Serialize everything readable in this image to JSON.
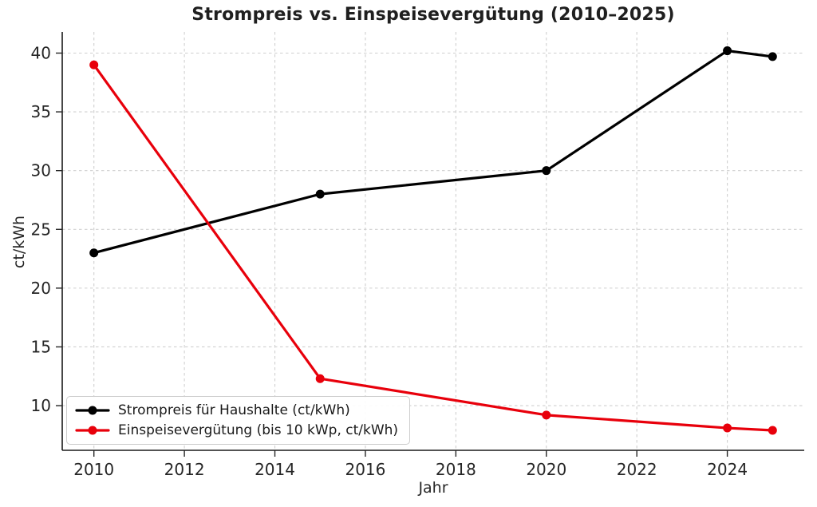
{
  "chart_data": {
    "type": "line",
    "title": "Strompreis vs. Einspeisevergütung (2010–2025)",
    "xlabel": "Jahr",
    "ylabel": "ct/kWh",
    "x": [
      2010,
      2015,
      2020,
      2024,
      2025
    ],
    "series": [
      {
        "name": "Strompreis für Haushalte (ct/kWh)",
        "color": "#000000",
        "values": [
          23.0,
          28.0,
          30.0,
          40.2,
          39.7
        ]
      },
      {
        "name": "Einspeisevergütung (bis 10 kWp, ct/kWh)",
        "color": "#e8000b",
        "values": [
          39.0,
          12.3,
          9.2,
          8.1,
          7.9
        ]
      }
    ],
    "xticks": [
      2010,
      2012,
      2014,
      2016,
      2018,
      2020,
      2022,
      2024
    ],
    "yticks": [
      10,
      15,
      20,
      25,
      30,
      35,
      40
    ],
    "xlim": [
      2009.3,
      2025.7
    ],
    "ylim": [
      6.2,
      41.8
    ],
    "grid": true,
    "legend_position": "lower left",
    "style": {
      "grid_color": "#cfcfcf",
      "spine_color": "#1a1a1a",
      "tick_color": "#262626",
      "tick_label_color": "#262626",
      "line_width": 3.2,
      "marker_radius": 5.5
    }
  }
}
